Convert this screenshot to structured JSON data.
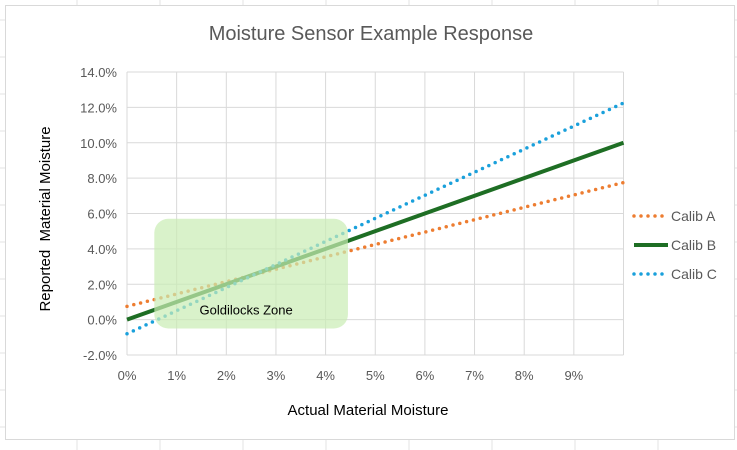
{
  "chart_data": {
    "type": "line",
    "title": "Moisture Sensor Example Response",
    "xlabel": "Actual Material Moisture",
    "ylabel": "Reported  Material Moisture",
    "xlim": [
      0,
      10
    ],
    "ylim": [
      -2,
      14
    ],
    "x_ticks": [
      0,
      1,
      2,
      3,
      4,
      5,
      6,
      7,
      8,
      9
    ],
    "x_tick_labels": [
      "0%",
      "1%",
      "2%",
      "3%",
      "4%",
      "5%",
      "6%",
      "7%",
      "8%",
      "9%"
    ],
    "y_ticks": [
      -2,
      0,
      2,
      4,
      6,
      8,
      10,
      12,
      14
    ],
    "y_tick_labels": [
      "-2.0%",
      "0.0%",
      "2.0%",
      "4.0%",
      "6.0%",
      "8.0%",
      "10.0%",
      "12.0%",
      "14.0%"
    ],
    "grid": true,
    "legend_position": "right",
    "series": [
      {
        "name": "Calib A",
        "x": [
          0,
          10
        ],
        "y": [
          0.75,
          7.75
        ],
        "color": "#ed7d31",
        "style": "dotted"
      },
      {
        "name": "Calib B",
        "x": [
          0,
          10
        ],
        "y": [
          0,
          10
        ],
        "color": "#1e6e24",
        "style": "solid"
      },
      {
        "name": "Calib C",
        "x": [
          0,
          10
        ],
        "y": [
          -0.8,
          12.25
        ],
        "color": "#1aa0db",
        "style": "dotted"
      }
    ],
    "annotations": [
      {
        "text": "Goldilocks Zone",
        "region": {
          "x": [
            0.55,
            4.45
          ],
          "y": [
            -0.5,
            5.7
          ]
        },
        "fill": "#c9ecb4"
      }
    ]
  }
}
